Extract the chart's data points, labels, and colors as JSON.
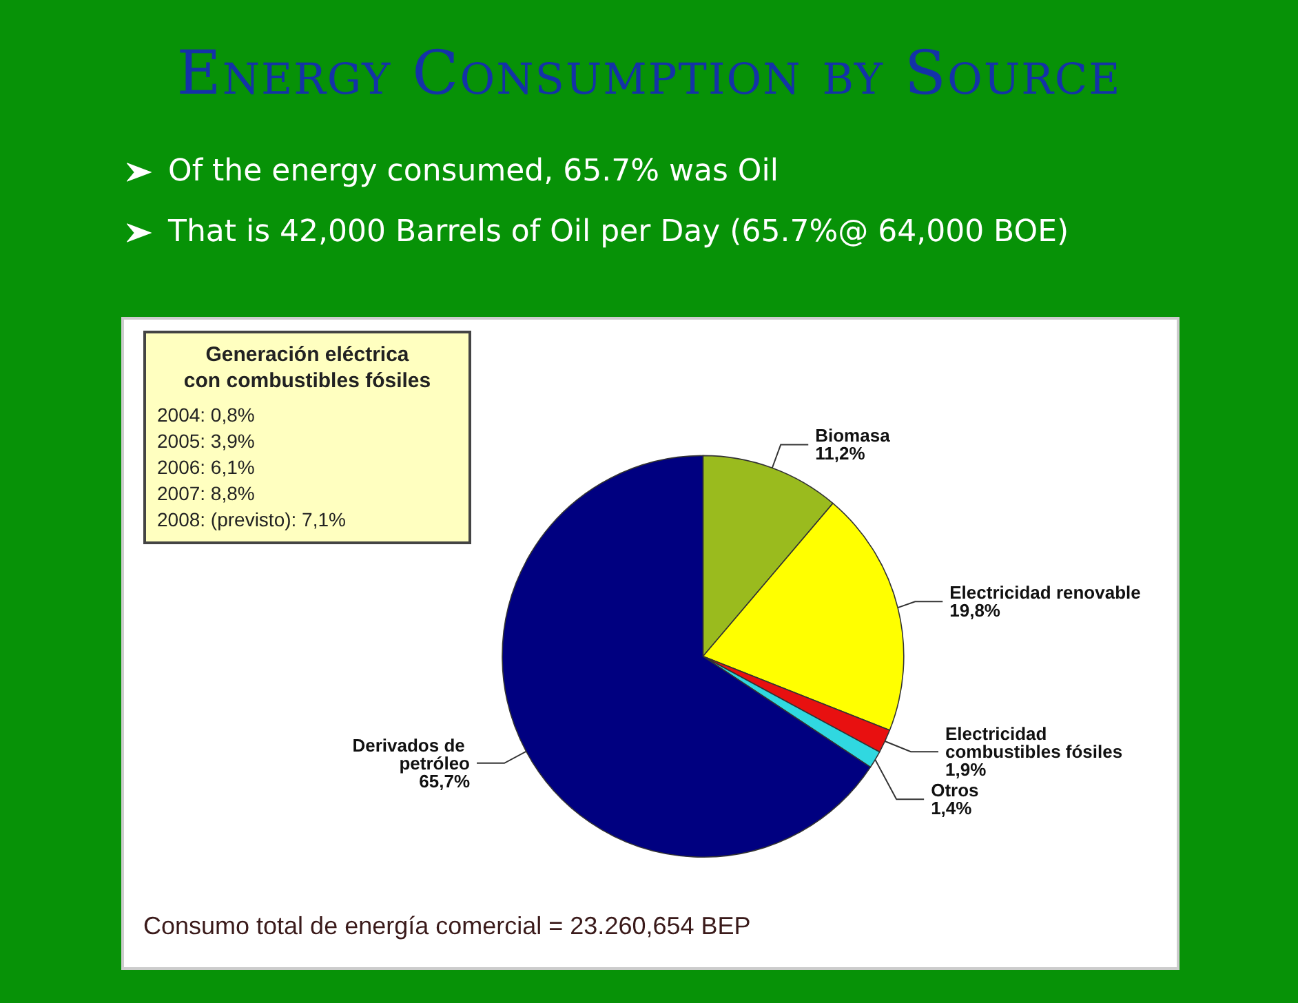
{
  "chart_data": {
    "type": "pie",
    "title": "Energy Consumption by Source",
    "categories": [
      "Biomasa",
      "Electricidad renovable",
      "Electricidad combustibles fósiles",
      "Otros",
      "Derivados de petróleo"
    ],
    "values": [
      11.2,
      19.8,
      1.9,
      1.4,
      65.7
    ],
    "colors": [
      "#9abb1e",
      "#ffff00",
      "#e81010",
      "#30d8e0",
      "#000080"
    ],
    "value_labels": [
      "11,2%",
      "19,8%",
      "1,9%",
      "1,4%",
      "65,7%"
    ],
    "annotations": [
      "Of the energy consumed, 65.7% was Oil",
      "That is 42,000 Barrels of Oil per Day (65.7%@ 64,000 BOE)",
      "Generación  eléctrica\ncon combustibles fósiles\n2004:  0,8%\n2005:  3,9%\n2006:  6,1%\n2007:  8,8%\n2008:  (previsto): 7,1%",
      "Consumo total de energía comercial = 23.260,654 BEP"
    ]
  }
}
